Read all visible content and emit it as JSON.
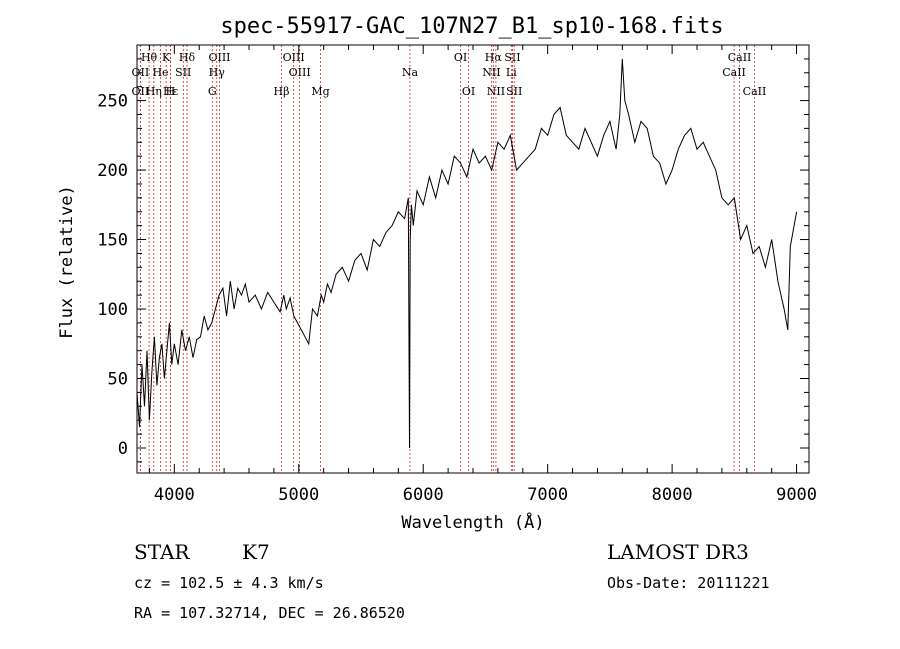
{
  "chart_data": {
    "type": "line",
    "title": "spec-55917-GAC_107N27_B1_sp10-168.fits",
    "xlabel": "Wavelength (Å)",
    "ylabel": "Flux (relative)",
    "xlim": [
      3700,
      9100
    ],
    "ylim": [
      -18,
      290
    ],
    "xticks": [
      4000,
      5000,
      6000,
      7000,
      8000,
      9000
    ],
    "yticks": [
      0,
      50,
      100,
      150,
      200,
      250
    ],
    "series": [
      {
        "name": "flux",
        "x": [
          3700,
          3720,
          3740,
          3760,
          3780,
          3800,
          3820,
          3840,
          3860,
          3880,
          3900,
          3920,
          3940,
          3960,
          3980,
          4000,
          4030,
          4060,
          4090,
          4120,
          4150,
          4180,
          4210,
          4240,
          4270,
          4300,
          4330,
          4360,
          4390,
          4420,
          4450,
          4480,
          4510,
          4540,
          4570,
          4600,
          4650,
          4700,
          4750,
          4800,
          4850,
          4880,
          4900,
          4930,
          4960,
          4990,
          5020,
          5050,
          5080,
          5110,
          5150,
          5180,
          5200,
          5230,
          5260,
          5300,
          5350,
          5400,
          5450,
          5500,
          5550,
          5600,
          5650,
          5700,
          5750,
          5800,
          5850,
          5880,
          5890,
          5895,
          5905,
          5920,
          5950,
          6000,
          6050,
          6100,
          6150,
          6200,
          6250,
          6300,
          6350,
          6400,
          6450,
          6500,
          6550,
          6600,
          6650,
          6700,
          6750,
          6800,
          6850,
          6900,
          6950,
          7000,
          7050,
          7100,
          7150,
          7200,
          7250,
          7300,
          7350,
          7400,
          7450,
          7500,
          7550,
          7580,
          7600,
          7620,
          7650,
          7700,
          7750,
          7800,
          7850,
          7900,
          7950,
          8000,
          8050,
          8100,
          8150,
          8200,
          8250,
          8300,
          8350,
          8400,
          8450,
          8500,
          8550,
          8600,
          8650,
          8700,
          8750,
          8800,
          8850,
          8900,
          8930,
          8950,
          8980,
          9000
        ],
        "values": [
          40,
          15,
          60,
          30,
          70,
          20,
          55,
          80,
          45,
          65,
          75,
          50,
          70,
          90,
          60,
          75,
          60,
          85,
          70,
          80,
          65,
          78,
          80,
          95,
          85,
          90,
          100,
          110,
          115,
          95,
          120,
          100,
          115,
          110,
          118,
          105,
          110,
          100,
          112,
          105,
          98,
          110,
          100,
          108,
          95,
          90,
          85,
          80,
          75,
          100,
          95,
          110,
          105,
          118,
          112,
          125,
          130,
          120,
          135,
          140,
          128,
          150,
          145,
          155,
          160,
          170,
          165,
          180,
          0,
          150,
          175,
          160,
          185,
          175,
          195,
          180,
          200,
          190,
          210,
          205,
          195,
          215,
          205,
          210,
          200,
          220,
          215,
          225,
          200,
          205,
          210,
          215,
          230,
          225,
          240,
          245,
          225,
          220,
          215,
          230,
          220,
          210,
          225,
          235,
          215,
          240,
          280,
          250,
          240,
          220,
          235,
          230,
          210,
          205,
          190,
          200,
          215,
          225,
          230,
          215,
          220,
          210,
          200,
          180,
          175,
          180,
          150,
          160,
          140,
          145,
          130,
          150,
          120,
          100,
          85,
          145,
          160,
          170
        ]
      }
    ],
    "line_markers": [
      {
        "label": "Hθ",
        "x": 3797,
        "row": 1
      },
      {
        "label": "OII",
        "x": 3727,
        "row": 2
      },
      {
        "label": "OII",
        "x": 3727,
        "row": 3
      },
      {
        "label": "Hε",
        "x": 3970,
        "row": 3
      },
      {
        "label": "He",
        "x": 3889,
        "row": 2
      },
      {
        "label": "Hη",
        "x": 3835,
        "row": 3
      },
      {
        "label": "K",
        "x": 3934,
        "row": 1
      },
      {
        "label": "H",
        "x": 3969,
        "row": 3
      },
      {
        "label": "Hδ",
        "x": 4102,
        "row": 1
      },
      {
        "label": "SII",
        "x": 4072,
        "row": 2
      },
      {
        "label": "OIII",
        "x": 4363,
        "row": 1
      },
      {
        "label": "Hγ",
        "x": 4341,
        "row": 2
      },
      {
        "label": "G",
        "x": 4305,
        "row": 3
      },
      {
        "label": "Hβ",
        "x": 4861,
        "row": 3
      },
      {
        "label": "OIII",
        "x": 4959,
        "row": 1
      },
      {
        "label": "OIII",
        "x": 5007,
        "row": 2
      },
      {
        "label": "Mg",
        "x": 5175,
        "row": 3
      },
      {
        "label": "Na",
        "x": 5893,
        "row": 2
      },
      {
        "label": "OI",
        "x": 6300,
        "row": 1
      },
      {
        "label": "OI",
        "x": 6364,
        "row": 3
      },
      {
        "label": "Hα",
        "x": 6563,
        "row": 1
      },
      {
        "label": "NII",
        "x": 6548,
        "row": 2
      },
      {
        "label": "NII",
        "x": 6584,
        "row": 3
      },
      {
        "label": "SII",
        "x": 6717,
        "row": 1
      },
      {
        "label": "Li",
        "x": 6708,
        "row": 2
      },
      {
        "label": "SII",
        "x": 6731,
        "row": 3
      },
      {
        "label": "CaII",
        "x": 8542,
        "row": 1
      },
      {
        "label": "CaII",
        "x": 8498,
        "row": 2
      },
      {
        "label": "CaII",
        "x": 8662,
        "row": 3
      }
    ]
  },
  "info": {
    "object_class": "STAR",
    "subclass": "K7",
    "survey": "LAMOST DR3",
    "cz": "cz = 102.5 ± 4.3 km/s",
    "obs_date": "Obs-Date: 20111221",
    "coords": "RA = 107.32714, DEC =  26.86520"
  }
}
